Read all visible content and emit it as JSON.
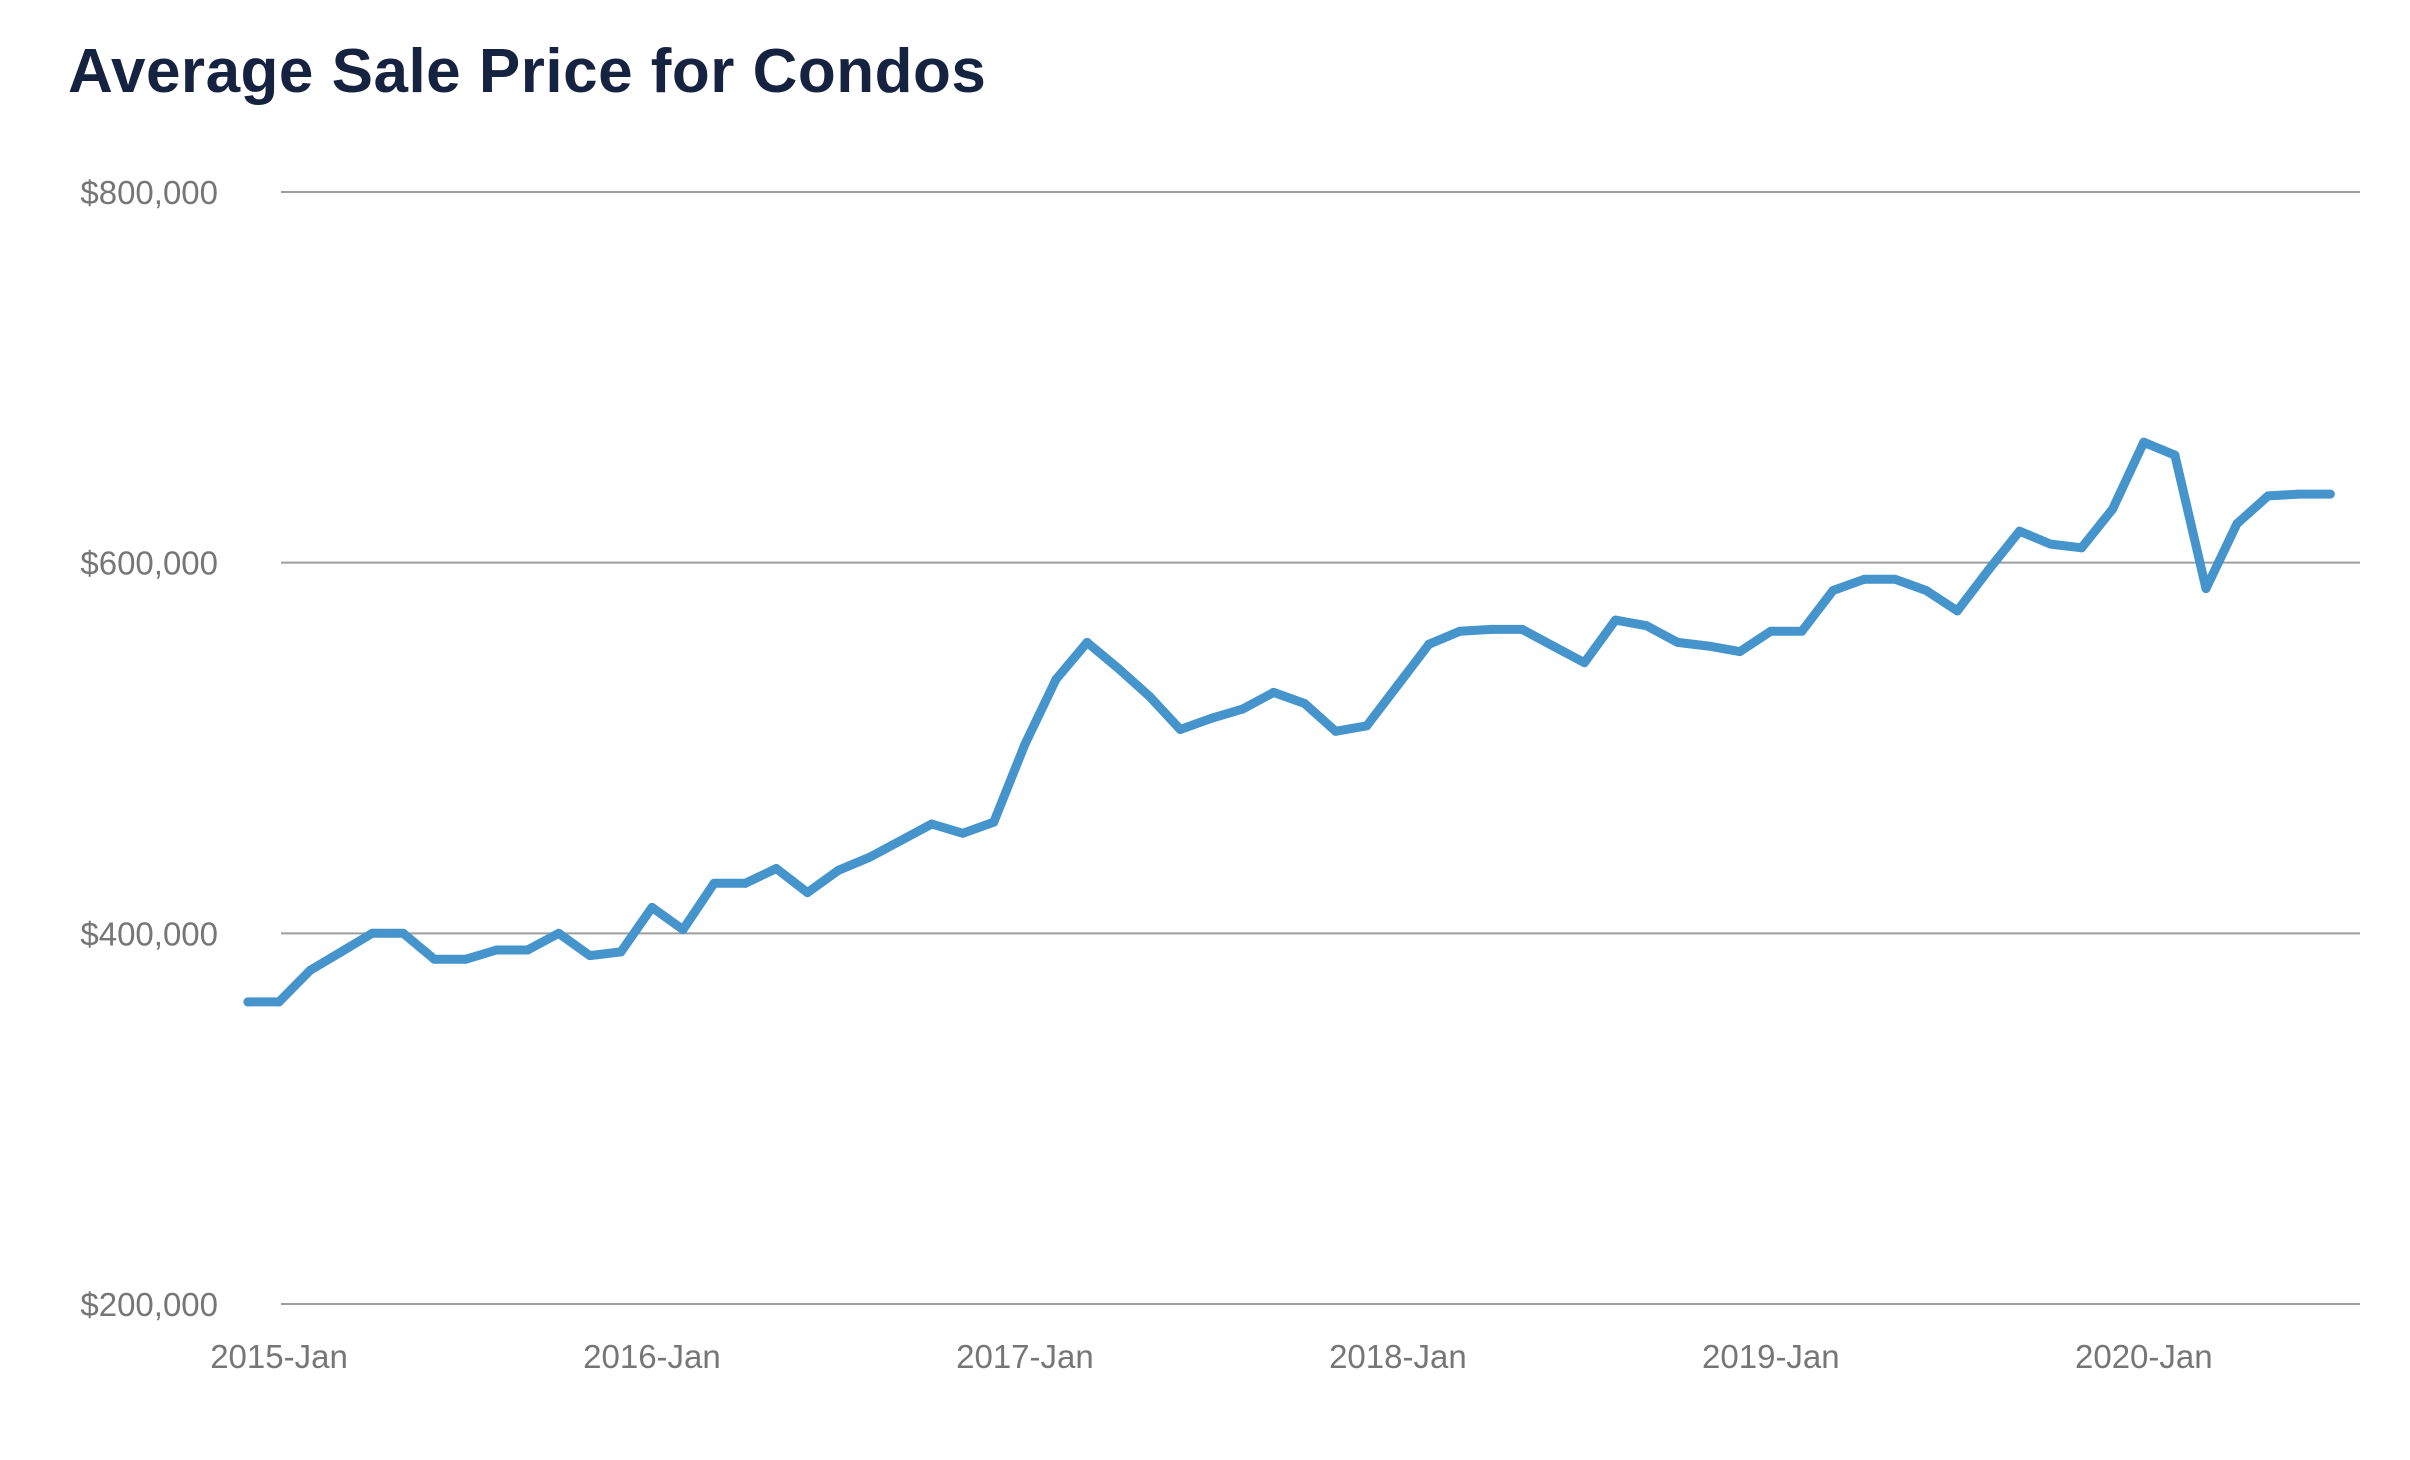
{
  "chart_data": {
    "type": "line",
    "title": "Average Sale Price for Condos",
    "xlabel": "",
    "ylabel": "",
    "ylim": [
      200000,
      800000
    ],
    "yticks": [
      {
        "value": 200000,
        "label": "$200,000"
      },
      {
        "value": 400000,
        "label": "$400,000"
      },
      {
        "value": 600000,
        "label": "$600,000"
      },
      {
        "value": 800000,
        "label": "$800,000"
      }
    ],
    "xticks": [
      {
        "date": "2015-01",
        "label": "2015-Jan"
      },
      {
        "date": "2016-01",
        "label": "2016-Jan"
      },
      {
        "date": "2017-01",
        "label": "2017-Jan"
      },
      {
        "date": "2018-01",
        "label": "2018-Jan"
      },
      {
        "date": "2019-01",
        "label": "2019-Jan"
      },
      {
        "date": "2020-01",
        "label": "2020-Jan"
      }
    ],
    "grid": "horizontal",
    "legend": "none",
    "color": "#4594cc",
    "series": [
      {
        "x": [
          "2014-12",
          "2015-01",
          "2015-02",
          "2015-03",
          "2015-04",
          "2015-05",
          "2015-06",
          "2015-07",
          "2015-08",
          "2015-09",
          "2015-10",
          "2015-11",
          "2015-12",
          "2016-01",
          "2016-02",
          "2016-03",
          "2016-04",
          "2016-05",
          "2016-06",
          "2016-07",
          "2016-08",
          "2016-09",
          "2016-10",
          "2016-11",
          "2016-12",
          "2017-01",
          "2017-02",
          "2017-03",
          "2017-04",
          "2017-05",
          "2017-06",
          "2017-07",
          "2017-08",
          "2017-09",
          "2017-10",
          "2017-11",
          "2017-12",
          "2018-01",
          "2018-02",
          "2018-03",
          "2018-04",
          "2018-05",
          "2018-06",
          "2018-07",
          "2018-08",
          "2018-09",
          "2018-10",
          "2018-11",
          "2018-12",
          "2019-01",
          "2019-02",
          "2019-03",
          "2019-04",
          "2019-05",
          "2019-06",
          "2019-07",
          "2019-08",
          "2019-09",
          "2019-10",
          "2019-11",
          "2019-12",
          "2020-01",
          "2020-02",
          "2020-03",
          "2020-04",
          "2020-05",
          "2020-06",
          "2020-07"
        ],
        "values": [
          363000,
          363000,
          380000,
          390000,
          400000,
          400000,
          386000,
          386000,
          391000,
          391000,
          400000,
          388000,
          390000,
          414000,
          402000,
          427000,
          427000,
          435000,
          422000,
          434000,
          441000,
          450000,
          459000,
          454000,
          460000,
          502000,
          537000,
          557000,
          543000,
          528000,
          510000,
          516000,
          521000,
          530000,
          524000,
          509000,
          512000,
          534000,
          556000,
          563000,
          564000,
          564000,
          555000,
          546000,
          569000,
          566000,
          557000,
          555000,
          552000,
          563000,
          563000,
          585000,
          591000,
          591000,
          585000,
          574000,
          596000,
          617000,
          610000,
          608000,
          629000,
          665000,
          658000,
          586000,
          621000,
          636000,
          637000,
          637000
        ]
      }
    ]
  }
}
